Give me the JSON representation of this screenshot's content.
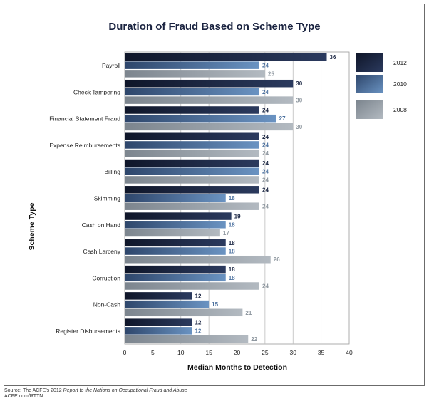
{
  "chart_data": {
    "type": "bar",
    "orientation": "horizontal",
    "title": "Duration of Fraud Based on Scheme Type",
    "xlabel": "Median Months to Detection",
    "ylabel": "Scheme Type",
    "xlim": [
      0,
      40
    ],
    "xticks": [
      "0",
      "5",
      "10",
      "15",
      "20",
      "25",
      "30",
      "35",
      "40"
    ],
    "grid": "vertical",
    "legend_position": "right",
    "categories": [
      "Payroll",
      "Check Tampering",
      "Financial Statement Fraud",
      "Expense Reimbursements",
      "Billing",
      "Skimming",
      "Cash on Hand",
      "Cash Larceny",
      "Corruption",
      "Non-Cash",
      "Register Disbursements"
    ],
    "series": [
      {
        "name": "2012",
        "color": "#1c2744",
        "label_color": "#1c2744",
        "values": [
          36,
          30,
          24,
          24,
          24,
          24,
          19,
          18,
          18,
          12,
          12
        ]
      },
      {
        "name": "2010",
        "color": "#4f78a6",
        "label_color": "#4d72a0",
        "values": [
          24,
          24,
          27,
          24,
          24,
          18,
          18,
          18,
          18,
          15,
          12
        ]
      },
      {
        "name": "2008",
        "color": "#9aa3ac",
        "label_color": "#8e979f",
        "values": [
          25,
          30,
          30,
          24,
          24,
          24,
          17,
          26,
          24,
          21,
          22
        ]
      }
    ]
  },
  "source": {
    "prefix": "Source: The ACFE’s 2012 ",
    "italic": "Report to the Nations on Occupational Fraud and Abuse",
    "line2": "ACFE.com/RTTN"
  }
}
